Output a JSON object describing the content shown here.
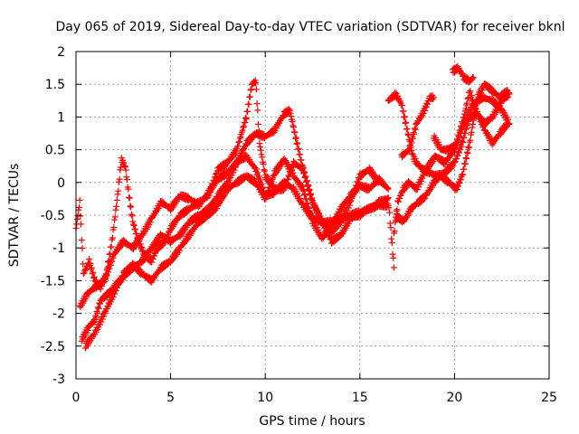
{
  "chart_data": {
    "type": "scatter",
    "title": "Day 065 of 2019, Sidereal Day-to-day VTEC variation (SDTVAR) for receiver bknl",
    "xlabel": "GPS time / hours",
    "ylabel": "SDTVAR / TECUs",
    "xlim": [
      0,
      25
    ],
    "ylim": [
      -3,
      2
    ],
    "xticks": [
      "0",
      "5",
      "10",
      "15",
      "20",
      "25"
    ],
    "yticks": [
      "-3",
      "-2.5",
      "-2",
      "-1.5",
      "-1",
      "-0.5",
      "0",
      "0.5",
      "1",
      "1.5",
      "2"
    ],
    "grid": true,
    "marker": "+",
    "series": [
      {
        "color": "#ff0000",
        "tracks": [
          [
            [
              0.0,
              -0.7
            ],
            [
              0.2,
              -0.3
            ],
            [
              0.4,
              -1.4
            ],
            [
              0.7,
              -1.2
            ],
            [
              1.0,
              -1.5
            ],
            [
              1.3,
              -1.6
            ],
            [
              1.6,
              -1.4
            ],
            [
              1.9,
              -0.9
            ],
            [
              2.2,
              -0.2
            ],
            [
              2.4,
              0.35
            ],
            [
              2.6,
              0.25
            ],
            [
              2.8,
              -0.2
            ],
            [
              3.0,
              -0.6
            ],
            [
              3.3,
              -0.9
            ],
            [
              3.6,
              -1.1
            ],
            [
              4.0,
              -1.2
            ],
            [
              4.3,
              -1.0
            ],
            [
              4.7,
              -0.9
            ],
            [
              5.0,
              -0.7
            ],
            [
              5.5,
              -0.5
            ],
            [
              6.0,
              -0.4
            ],
            [
              6.5,
              -0.3
            ],
            [
              7.0,
              -0.2
            ],
            [
              7.5,
              0.2
            ],
            [
              8.0,
              0.3
            ],
            [
              8.5,
              0.5
            ],
            [
              9.0,
              1.0
            ],
            [
              9.3,
              1.5
            ],
            [
              9.5,
              1.55
            ],
            [
              9.7,
              0.6
            ],
            [
              10.0,
              0.1
            ],
            [
              10.5,
              -0.1
            ],
            [
              11.0,
              -0.1
            ],
            [
              11.5,
              0.3
            ],
            [
              12.0,
              0.2
            ],
            [
              12.5,
              -0.3
            ],
            [
              13.0,
              -0.6
            ],
            [
              13.5,
              -0.6
            ],
            [
              14.0,
              -0.55
            ],
            [
              14.5,
              -0.5
            ],
            [
              15.0,
              -0.45
            ],
            [
              15.5,
              -0.4
            ],
            [
              16.0,
              -0.3
            ],
            [
              16.5,
              -0.25
            ],
            [
              16.8,
              -1.3
            ]
          ],
          [
            [
              0.2,
              -1.9
            ],
            [
              0.6,
              -1.7
            ],
            [
              1.0,
              -1.6
            ],
            [
              1.5,
              -1.5
            ],
            [
              2.0,
              -1.1
            ],
            [
              2.5,
              -0.9
            ],
            [
              3.0,
              -1.0
            ],
            [
              3.5,
              -0.8
            ],
            [
              4.0,
              -0.55
            ],
            [
              4.5,
              -0.3
            ],
            [
              5.0,
              -0.4
            ],
            [
              5.5,
              -0.2
            ],
            [
              6.0,
              -0.25
            ],
            [
              6.5,
              -0.35
            ],
            [
              7.0,
              -0.15
            ],
            [
              7.5,
              0.05
            ],
            [
              8.0,
              0.15
            ],
            [
              8.5,
              0.3
            ],
            [
              9.0,
              0.6
            ],
            [
              9.5,
              0.75
            ],
            [
              10.0,
              0.7
            ],
            [
              10.5,
              0.8
            ],
            [
              11.0,
              1.05
            ],
            [
              11.3,
              1.1
            ],
            [
              11.6,
              0.7
            ],
            [
              12.0,
              0.2
            ],
            [
              12.5,
              -0.3
            ],
            [
              13.0,
              -0.6
            ],
            [
              13.5,
              -0.75
            ],
            [
              14.0,
              -0.6
            ],
            [
              14.5,
              -0.3
            ],
            [
              15.0,
              0.1
            ],
            [
              15.5,
              0.2
            ],
            [
              16.0,
              0.0
            ]
          ],
          [
            [
              0.3,
              -2.4
            ],
            [
              0.7,
              -2.2
            ],
            [
              1.0,
              -2.1
            ],
            [
              1.3,
              -1.8
            ],
            [
              1.7,
              -1.7
            ],
            [
              2.0,
              -1.6
            ],
            [
              2.5,
              -1.45
            ],
            [
              3.0,
              -1.3
            ],
            [
              3.5,
              -1.2
            ],
            [
              4.0,
              -1.0
            ],
            [
              4.5,
              -0.8
            ],
            [
              5.0,
              -0.9
            ],
            [
              5.5,
              -0.8
            ],
            [
              6.0,
              -0.6
            ],
            [
              6.5,
              -0.5
            ],
            [
              7.0,
              -0.4
            ],
            [
              7.5,
              -0.2
            ],
            [
              8.0,
              0.0
            ],
            [
              8.5,
              0.3
            ],
            [
              9.0,
              0.4
            ],
            [
              9.5,
              0.2
            ],
            [
              10.0,
              -0.2
            ],
            [
              10.5,
              -0.15
            ],
            [
              11.0,
              0.0
            ],
            [
              11.5,
              -0.1
            ],
            [
              12.0,
              -0.35
            ],
            [
              12.5,
              -0.55
            ],
            [
              13.0,
              -0.6
            ],
            [
              13.5,
              -0.9
            ],
            [
              14.0,
              -0.8
            ],
            [
              14.5,
              -0.55
            ],
            [
              15.0,
              -0.5
            ],
            [
              15.5,
              -0.4
            ],
            [
              16.0,
              -0.35
            ],
            [
              16.5,
              -0.35
            ]
          ],
          [
            [
              0.5,
              -2.5
            ],
            [
              1.0,
              -2.3
            ],
            [
              1.5,
              -2.0
            ],
            [
              2.0,
              -1.7
            ],
            [
              2.5,
              -1.4
            ],
            [
              3.0,
              -1.25
            ],
            [
              3.5,
              -1.4
            ],
            [
              4.0,
              -1.5
            ],
            [
              4.5,
              -1.3
            ],
            [
              5.0,
              -1.2
            ],
            [
              5.5,
              -1.0
            ],
            [
              6.0,
              -0.8
            ],
            [
              6.5,
              -0.6
            ],
            [
              7.0,
              -0.5
            ],
            [
              7.5,
              -0.35
            ],
            [
              8.0,
              -0.1
            ],
            [
              8.5,
              0.0
            ],
            [
              9.0,
              0.1
            ],
            [
              9.5,
              0.0
            ],
            [
              10.0,
              -0.25
            ],
            [
              10.5,
              0.15
            ],
            [
              11.0,
              0.35
            ],
            [
              11.5,
              0.1
            ],
            [
              12.0,
              -0.1
            ],
            [
              12.5,
              -0.6
            ],
            [
              13.0,
              -0.85
            ],
            [
              13.5,
              -0.65
            ],
            [
              14.0,
              -0.4
            ],
            [
              14.5,
              -0.2
            ],
            [
              15.0,
              -0.05
            ],
            [
              15.5,
              -0.1
            ],
            [
              16.0,
              0.05
            ],
            [
              16.5,
              -0.1
            ]
          ],
          [
            [
              16.8,
              -0.8
            ],
            [
              17.0,
              -0.3
            ],
            [
              17.3,
              -0.1
            ],
            [
              17.6,
              0.0
            ],
            [
              18.0,
              -0.1
            ],
            [
              18.5,
              0.2
            ],
            [
              19.0,
              0.4
            ],
            [
              19.5,
              0.3
            ],
            [
              20.0,
              0.5
            ],
            [
              20.5,
              0.9
            ],
            [
              21.0,
              1.2
            ],
            [
              21.5,
              1.3
            ],
            [
              22.0,
              1.25
            ],
            [
              22.5,
              1.1
            ],
            [
              22.9,
              0.9
            ]
          ],
          [
            [
              16.5,
              1.25
            ],
            [
              16.9,
              1.35
            ],
            [
              17.2,
              1.2
            ],
            [
              17.5,
              0.8
            ],
            [
              17.8,
              0.4
            ],
            [
              18.0,
              0.3
            ],
            [
              18.3,
              0.2
            ],
            [
              18.7,
              0.15
            ],
            [
              19.0,
              0.1
            ],
            [
              19.5,
              0.15
            ],
            [
              20.0,
              0.3
            ],
            [
              20.4,
              0.6
            ],
            [
              20.8,
              1.0
            ],
            [
              21.2,
              1.05
            ],
            [
              21.6,
              0.9
            ],
            [
              22.0,
              1.0
            ],
            [
              22.5,
              1.25
            ],
            [
              22.9,
              1.35
            ]
          ],
          [
            [
              17.2,
              0.4
            ],
            [
              17.6,
              0.5
            ],
            [
              18.0,
              0.9
            ],
            [
              18.4,
              1.1
            ],
            [
              18.7,
              1.3
            ],
            [
              18.9,
              1.3
            ]
          ],
          [
            [
              16.9,
              -0.5
            ],
            [
              17.3,
              -0.6
            ],
            [
              17.7,
              -0.4
            ],
            [
              18.1,
              -0.3
            ],
            [
              18.5,
              -0.2
            ],
            [
              18.9,
              0.0
            ],
            [
              19.3,
              0.1
            ],
            [
              19.7,
              0.0
            ],
            [
              20.1,
              -0.1
            ],
            [
              20.4,
              0.1
            ],
            [
              20.8,
              0.6
            ],
            [
              21.2,
              1.3
            ],
            [
              21.6,
              1.5
            ],
            [
              22.0,
              1.4
            ],
            [
              22.4,
              1.3
            ],
            [
              22.8,
              1.4
            ]
          ],
          [
            [
              18.9,
              0.7
            ],
            [
              19.3,
              0.5
            ],
            [
              19.7,
              0.5
            ],
            [
              20.1,
              0.6
            ],
            [
              20.5,
              1.0
            ],
            [
              20.8,
              1.4
            ],
            [
              21.0,
              1.2
            ],
            [
              21.3,
              1.0
            ],
            [
              21.6,
              0.8
            ],
            [
              22.0,
              0.6
            ],
            [
              22.4,
              0.75
            ],
            [
              22.8,
              0.9
            ]
          ],
          [
            [
              19.9,
              1.7
            ],
            [
              20.2,
              1.75
            ],
            [
              20.5,
              1.6
            ],
            [
              20.8,
              1.55
            ],
            [
              21.0,
              1.6
            ]
          ]
        ]
      }
    ]
  }
}
